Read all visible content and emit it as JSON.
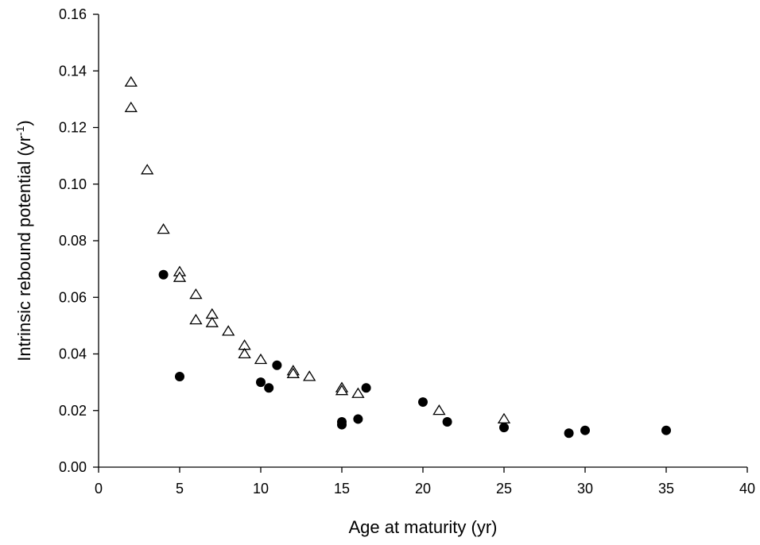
{
  "chart_data": {
    "type": "scatter",
    "title": "",
    "xlabel": "Age at maturity (yr)",
    "ylabel": {
      "prefix": "Intrinsic rebound potential (yr",
      "superscript": "-1",
      "suffix": ")"
    },
    "xlim": [
      0,
      40
    ],
    "ylim": [
      0,
      0.16
    ],
    "x_ticks": [
      "0",
      "5",
      "10",
      "15",
      "20",
      "25",
      "30",
      "35",
      "40"
    ],
    "y_ticks": [
      "0.00",
      "0.02",
      "0.04",
      "0.06",
      "0.08",
      "0.10",
      "0.12",
      "0.14",
      "0.16"
    ],
    "grid": false,
    "legend": "none",
    "series": [
      {
        "marker": "open-triangle",
        "color": "#000000",
        "points": [
          [
            2,
            0.136
          ],
          [
            2,
            0.127
          ],
          [
            3,
            0.105
          ],
          [
            4,
            0.084
          ],
          [
            5,
            0.069
          ],
          [
            5,
            0.067
          ],
          [
            6,
            0.061
          ],
          [
            6,
            0.052
          ],
          [
            7,
            0.054
          ],
          [
            7,
            0.051
          ],
          [
            8,
            0.048
          ],
          [
            9,
            0.043
          ],
          [
            9,
            0.04
          ],
          [
            10,
            0.038
          ],
          [
            12,
            0.034
          ],
          [
            12,
            0.033
          ],
          [
            13,
            0.032
          ],
          [
            15,
            0.028
          ],
          [
            15,
            0.027
          ],
          [
            16,
            0.026
          ],
          [
            21,
            0.02
          ],
          [
            25,
            0.017
          ]
        ]
      },
      {
        "marker": "filled-circle",
        "color": "#000000",
        "points": [
          [
            4,
            0.068
          ],
          [
            5,
            0.032
          ],
          [
            10,
            0.03
          ],
          [
            10.5,
            0.028
          ],
          [
            11,
            0.036
          ],
          [
            15,
            0.015
          ],
          [
            15,
            0.016
          ],
          [
            16,
            0.017
          ],
          [
            16.5,
            0.028
          ],
          [
            20,
            0.023
          ],
          [
            21.5,
            0.016
          ],
          [
            25,
            0.014
          ],
          [
            29,
            0.012
          ],
          [
            30,
            0.013
          ],
          [
            35,
            0.013
          ]
        ]
      }
    ]
  }
}
